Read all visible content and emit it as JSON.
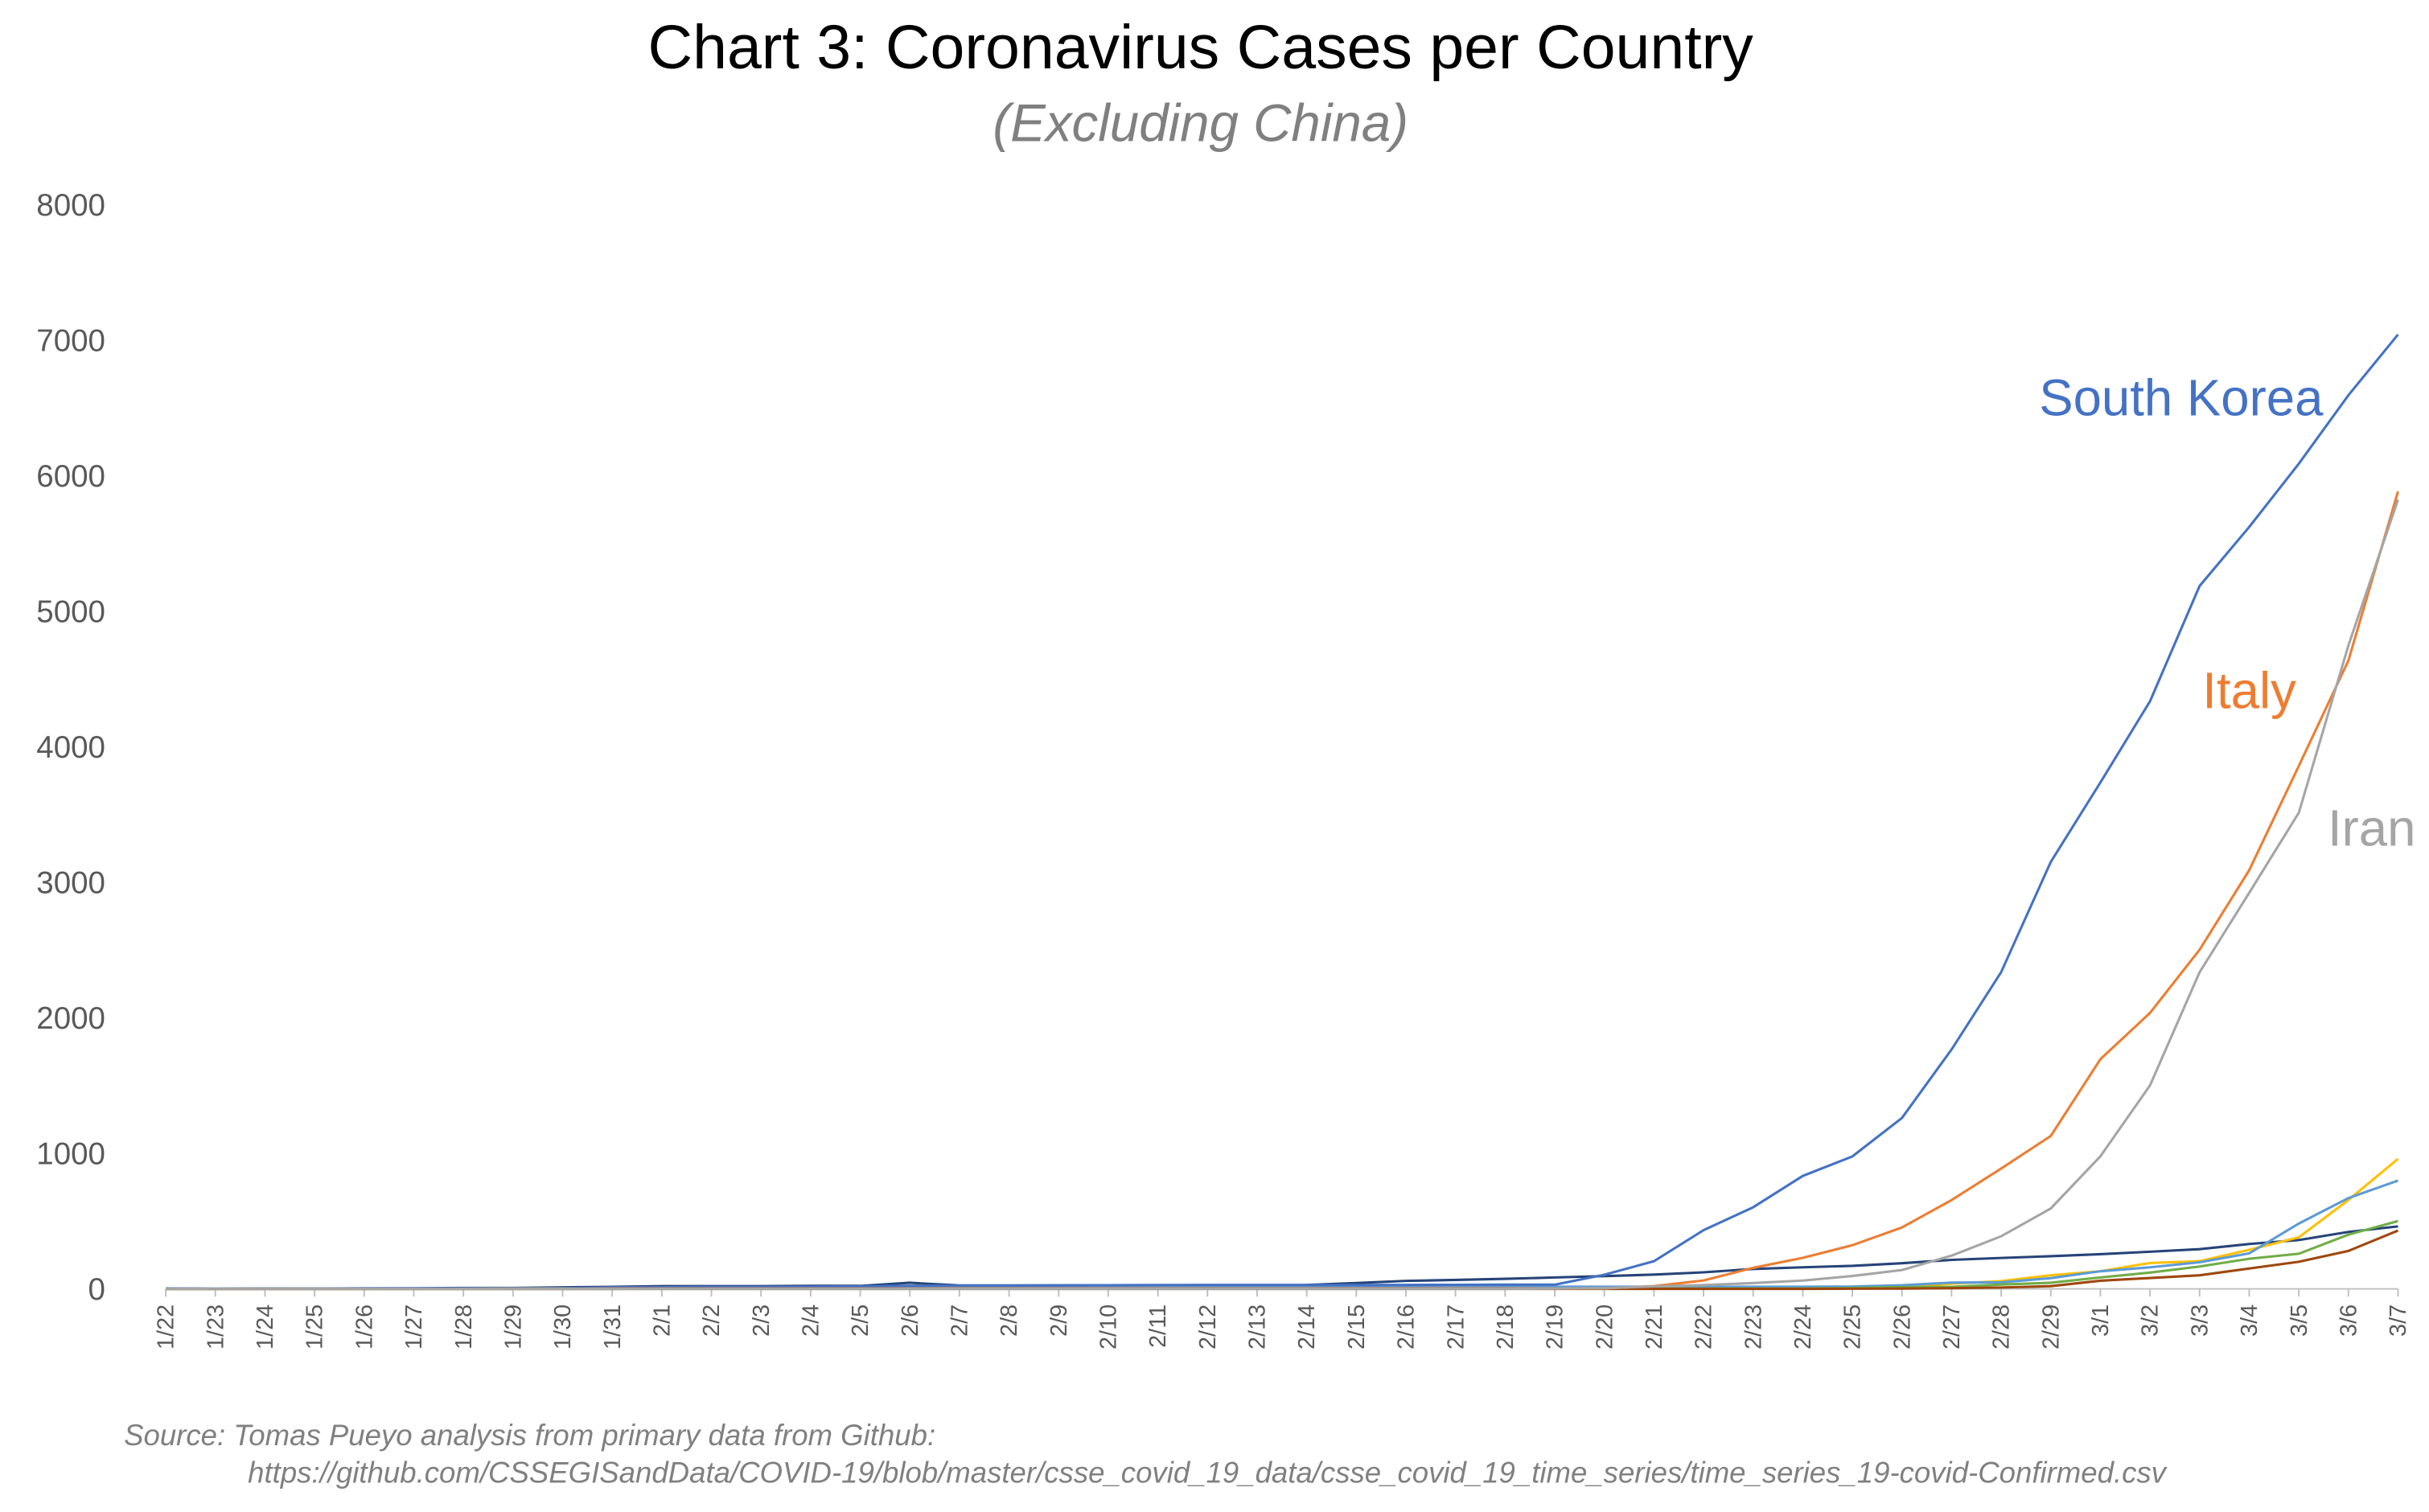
{
  "chart_data": {
    "type": "line",
    "title": "Chart 3: Coronavirus Cases per Country",
    "subtitle": "(Excluding China)",
    "categories": [
      "1/22",
      "1/23",
      "1/24",
      "1/25",
      "1/26",
      "1/27",
      "1/28",
      "1/29",
      "1/30",
      "1/31",
      "2/1",
      "2/2",
      "2/3",
      "2/4",
      "2/5",
      "2/6",
      "2/7",
      "2/8",
      "2/9",
      "2/10",
      "2/11",
      "2/12",
      "2/13",
      "2/14",
      "2/15",
      "2/16",
      "2/17",
      "2/18",
      "2/19",
      "2/20",
      "2/21",
      "2/22",
      "2/23",
      "2/24",
      "2/25",
      "2/26",
      "2/27",
      "2/28",
      "2/29",
      "3/1",
      "3/2",
      "3/3",
      "3/4",
      "3/5",
      "3/6",
      "3/7"
    ],
    "series": [
      {
        "color": "#264478",
        "values": [
          2,
          1,
          2,
          2,
          4,
          4,
          7,
          7,
          11,
          15,
          20,
          20,
          20,
          22,
          22,
          45,
          25,
          25,
          26,
          26,
          26,
          28,
          28,
          29,
          43,
          59,
          66,
          74,
          84,
          94,
          105,
          122,
          147,
          159,
          170,
          189,
          214,
          228,
          241,
          256,
          274,
          293,
          331,
          360,
          420,
          461
        ]
      },
      {
        "color": "#ffc000",
        "values": [
          0,
          0,
          2,
          3,
          3,
          3,
          4,
          5,
          5,
          5,
          6,
          6,
          6,
          6,
          6,
          6,
          6,
          11,
          11,
          11,
          11,
          11,
          11,
          11,
          12,
          12,
          12,
          12,
          12,
          12,
          12,
          12,
          12,
          12,
          14,
          18,
          38,
          57,
          100,
          130,
          191,
          204,
          288,
          380,
          656,
          959
        ]
      },
      {
        "color": "#5b9bd5",
        "values": [
          0,
          0,
          0,
          0,
          0,
          1,
          4,
          4,
          4,
          5,
          8,
          10,
          12,
          12,
          12,
          12,
          13,
          13,
          14,
          14,
          16,
          16,
          16,
          16,
          16,
          16,
          16,
          16,
          16,
          16,
          16,
          16,
          16,
          16,
          17,
          27,
          46,
          48,
          79,
          130,
          159,
          196,
          262,
          482,
          670,
          799
        ]
      },
      {
        "color": "#70ad47",
        "values": [
          0,
          0,
          0,
          0,
          0,
          0,
          0,
          0,
          0,
          0,
          1,
          1,
          1,
          1,
          1,
          1,
          1,
          1,
          2,
          2,
          2,
          2,
          2,
          2,
          2,
          2,
          2,
          2,
          2,
          2,
          2,
          2,
          2,
          2,
          6,
          13,
          15,
          32,
          45,
          84,
          120,
          165,
          222,
          259,
          400,
          500
        ]
      },
      {
        "color": "#9e480e",
        "values": [
          0,
          0,
          0,
          0,
          0,
          0,
          0,
          0,
          0,
          0,
          0,
          0,
          0,
          0,
          0,
          0,
          0,
          0,
          0,
          0,
          0,
          0,
          0,
          0,
          0,
          0,
          0,
          0,
          0,
          0,
          0,
          0,
          0,
          0,
          1,
          2,
          5,
          10,
          20,
          60,
          80,
          100,
          150,
          200,
          280,
          430
        ]
      },
      {
        "name": "South Korea",
        "color": "#4472c4",
        "values": [
          1,
          1,
          2,
          2,
          3,
          4,
          4,
          4,
          4,
          11,
          12,
          15,
          15,
          16,
          19,
          23,
          24,
          24,
          25,
          27,
          28,
          28,
          28,
          28,
          28,
          29,
          30,
          31,
          31,
          104,
          204,
          433,
          602,
          833,
          977,
          1261,
          1766,
          2337,
          3150,
          3736,
          4335,
          5186,
          5621,
          6088,
          6593,
          7041
        ]
      },
      {
        "name": "Italy",
        "color": "#ed7d31",
        "values": [
          0,
          0,
          0,
          0,
          0,
          0,
          0,
          0,
          0,
          2,
          2,
          2,
          2,
          2,
          2,
          2,
          3,
          3,
          3,
          3,
          3,
          3,
          3,
          3,
          3,
          3,
          3,
          3,
          3,
          3,
          20,
          62,
          155,
          229,
          322,
          453,
          655,
          888,
          1128,
          1694,
          2036,
          2502,
          3089,
          3858,
          4636,
          5883
        ]
      },
      {
        "name": "Iran",
        "color": "#a5a5a5",
        "values": [
          0,
          0,
          0,
          0,
          0,
          0,
          0,
          0,
          0,
          0,
          0,
          0,
          0,
          0,
          0,
          0,
          0,
          0,
          0,
          0,
          0,
          0,
          0,
          0,
          0,
          0,
          0,
          0,
          2,
          5,
          18,
          28,
          43,
          61,
          95,
          139,
          245,
          388,
          593,
          978,
          1501,
          2336,
          2922,
          3513,
          4747,
          5823
        ]
      }
    ],
    "ylim": [
      0,
      8000
    ],
    "yticks": [
      0,
      1000,
      2000,
      3000,
      4000,
      5000,
      6000,
      7000,
      8000
    ],
    "grid": false,
    "source": [
      "Source: Tomas Pueyo analysis from primary data from Github:",
      "https://github.com/CSSEGISandData/COVID-19/blob/master/csse_covid_19_data/csse_covid_19_time_series/time_series_19-covid-Confirmed.csv"
    ]
  }
}
